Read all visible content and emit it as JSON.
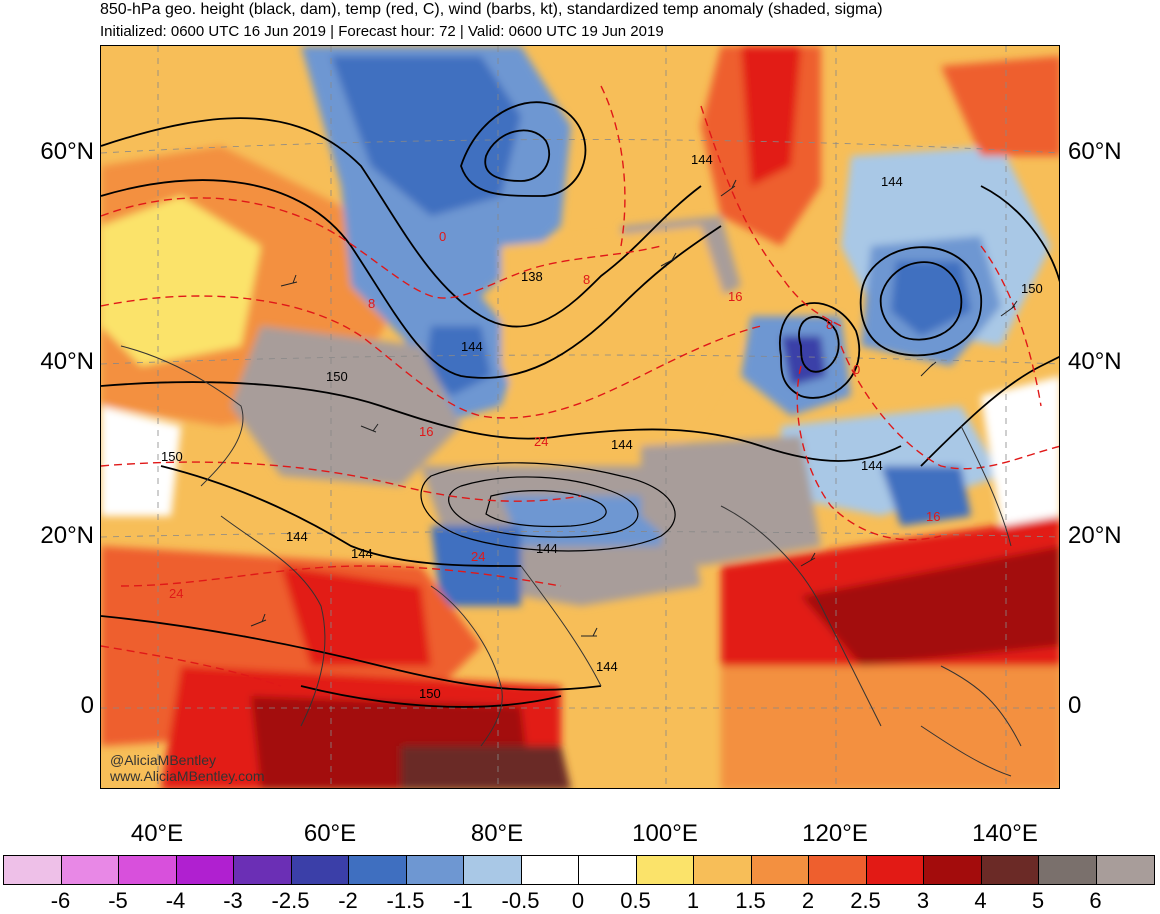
{
  "header": {
    "title": "850-hPa geo. height (black, dam), temp (red, C), wind (barbs, kt), standardized temp anomaly (shaded, sigma)",
    "subtitle": "Initialized: 0600 UTC 16 Jun 2019 | Forecast hour: 72 | Valid: 0600 UTC 19 Jun 2019"
  },
  "axes": {
    "lat_labels": [
      "60°N",
      "40°N",
      "20°N",
      "0"
    ],
    "lon_labels": [
      "40°E",
      "60°E",
      "80°E",
      "100°E",
      "120°E",
      "140°E"
    ]
  },
  "colorbar": {
    "labels": [
      "-6",
      "-5",
      "-4",
      "-3",
      "-2.5",
      "-2",
      "-1.5",
      "-1",
      "-0.5",
      "0",
      "0.5",
      "1",
      "1.5",
      "2",
      "2.5",
      "3",
      "4",
      "5",
      "6"
    ],
    "colors": [
      "#eec0e8",
      "#e888e6",
      "#d850dc",
      "#b020d0",
      "#6b2fb5",
      "#3b3fa8",
      "#3f6fc0",
      "#6e97d2",
      "#a9c8e6",
      "#ffffff",
      "#ffffff",
      "#fbe36a",
      "#f7be58",
      "#f39040",
      "#ee5f2e",
      "#e21a15",
      "#a30c0c",
      "#6b2a26",
      "#7a706c",
      "#a89d9a"
    ]
  },
  "contour_labels": {
    "height": [
      "144",
      "144",
      "144",
      "138",
      "144",
      "150",
      "150",
      "144",
      "144",
      "144",
      "150",
      "144",
      "144",
      "150"
    ],
    "temp": [
      "0",
      "8",
      "8",
      "16",
      "8",
      "0",
      "16",
      "24",
      "24",
      "24",
      "16"
    ]
  },
  "watermark": {
    "line1": "@AliciaMBentley",
    "line2": "www.AliciaMBentley.com"
  }
}
